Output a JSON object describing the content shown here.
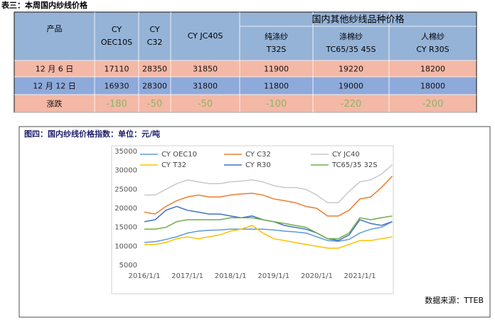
{
  "table_title": "表三：本周国内纱线价格",
  "table": {
    "group_header": "国内其他纱线品种价格",
    "columns": [
      [
        "产品"
      ],
      [
        "CY",
        "OEC10S"
      ],
      [
        "CY",
        "C32"
      ],
      [
        "CY JC40S"
      ],
      [
        "纯涤纱",
        "T32S"
      ],
      [
        "涤棉纱",
        "TC65/35 45S"
      ],
      [
        "人棉纱",
        "CY R30S"
      ]
    ],
    "rows": [
      [
        "12 月 6 日",
        17110,
        28350,
        31850,
        11900,
        19220,
        18200
      ],
      [
        "12 月 12 日",
        16930,
        28300,
        31800,
        11800,
        19000,
        18000
      ],
      [
        "涨跌",
        -180,
        -50,
        -50,
        -100,
        -220,
        -200
      ]
    ]
  },
  "chart_data": {
    "type": "line",
    "title": "图四：国内纱线价格指数：单位：元/吨",
    "categories": [
      "2016/1/1",
      null,
      null,
      null,
      "2017/1/1",
      null,
      null,
      null,
      "2018/1/1",
      null,
      null,
      null,
      "2019/1/1",
      null,
      null,
      null,
      "2020/1/1",
      null,
      null,
      null,
      "2021/1/1",
      null,
      null,
      null
    ],
    "series": [
      {
        "name": "CY OEC10",
        "color": "#5b9bd5",
        "values": [
          11000,
          11200,
          11800,
          12500,
          13500,
          14000,
          14200,
          14300,
          14500,
          14500,
          14500,
          14500,
          14300,
          14000,
          13800,
          13500,
          12500,
          11500,
          11300,
          11800,
          13500,
          14500,
          15000,
          16500
        ]
      },
      {
        "name": "CY C32",
        "color": "#ed7d31",
        "values": [
          19000,
          18500,
          20500,
          22000,
          23000,
          23500,
          23000,
          23000,
          23500,
          23800,
          24000,
          23500,
          22500,
          22000,
          21500,
          20500,
          20000,
          18000,
          18000,
          19500,
          22500,
          23000,
          25500,
          28500
        ]
      },
      {
        "name": "CY JC40",
        "color": "#c9c9c9",
        "values": [
          23500,
          23500,
          25000,
          26500,
          27500,
          27000,
          26500,
          26500,
          27000,
          27200,
          27500,
          27000,
          26000,
          25500,
          25500,
          25000,
          23500,
          21500,
          21500,
          24500,
          27000,
          27500,
          29000,
          31500
        ]
      },
      {
        "name": "CY T32",
        "color": "#ffc000",
        "values": [
          10500,
          10500,
          11000,
          12000,
          12500,
          12000,
          12500,
          13000,
          14000,
          14500,
          15500,
          13500,
          12000,
          11500,
          11000,
          10500,
          10000,
          9500,
          9500,
          10500,
          11500,
          11500,
          12000,
          12500
        ]
      },
      {
        "name": "CY R30",
        "color": "#4472c4",
        "values": [
          16500,
          17000,
          19500,
          20500,
          19500,
          19000,
          18500,
          18500,
          18000,
          17500,
          18000,
          17000,
          16500,
          15500,
          15000,
          14500,
          13500,
          12000,
          11500,
          13000,
          17000,
          16000,
          15500,
          16500
        ]
      },
      {
        "name": "TC65/35 32S",
        "color": "#70ad47",
        "values": [
          14500,
          14500,
          15000,
          16500,
          17000,
          17000,
          17000,
          17000,
          17500,
          17500,
          17500,
          17000,
          16500,
          16000,
          15500,
          15000,
          13500,
          12000,
          12000,
          13500,
          17500,
          17000,
          17500,
          18000
        ]
      }
    ],
    "ylim": [
      5000,
      35000
    ],
    "yticks": [
      5000,
      10000,
      15000,
      20000,
      25000,
      30000,
      35000
    ],
    "legend": "top"
  },
  "source": "数据来源：TTEB"
}
